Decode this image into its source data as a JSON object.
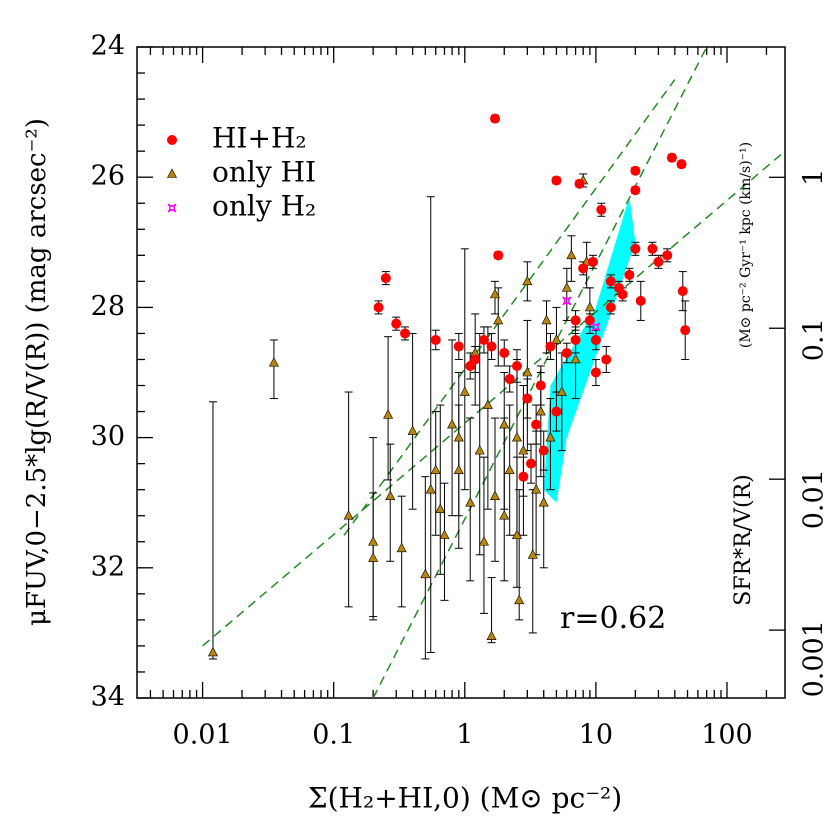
{
  "chart_data": {
    "type": "scatter",
    "xlabel": "Σ(H₂+HI,0) (M⊙ pc⁻²)",
    "ylabel": "μFUV,0−2.5*lg(R/V(R)) (mag arcsec⁻²)",
    "y2label": "SFR*R/V(R)",
    "y2unit": "(M⊙ pc⁻² Gyr⁻¹ kpc (km/s)⁻¹)",
    "annotation": "r=0.62",
    "annotation_color": "#228b22",
    "xlog": true,
    "y2log": true,
    "xlim": [
      0.00316,
      277
    ],
    "ylim": [
      24,
      34
    ],
    "y2lim": [
      0.000355,
      7.3
    ],
    "xticks": [
      0.01,
      0.1,
      1,
      10,
      100
    ],
    "yticks": [
      24,
      26,
      28,
      30,
      32,
      34
    ],
    "y2ticks": [
      1,
      0.1,
      0.01,
      0.001
    ],
    "xminor": [
      0.004,
      0.005,
      0.006,
      0.007,
      0.008,
      0.009,
      0.02,
      0.03,
      0.04,
      0.05,
      0.06,
      0.07,
      0.08,
      0.09,
      0.2,
      0.3,
      0.4,
      0.5,
      0.6,
      0.7,
      0.8,
      0.9,
      2,
      3,
      4,
      5,
      6,
      7,
      8,
      9,
      20,
      30,
      40,
      50,
      60,
      70,
      80,
      90,
      200
    ],
    "yminor": [
      24.4,
      24.8,
      25.2,
      25.6,
      26.4,
      26.8,
      27.2,
      27.6,
      28.4,
      28.8,
      29.2,
      29.6,
      30.4,
      30.8,
      31.2,
      31.6,
      32.4,
      32.8,
      33.2,
      33.6
    ],
    "legend": "upper left",
    "series": [
      {
        "name": "HI+H₂",
        "color": "#ff0000",
        "marker": "circle",
        "x": [
          1.7,
          0.25,
          0.22,
          0.3,
          0.35,
          0.6,
          0.9,
          1.2,
          1.6,
          2,
          2.5,
          3,
          3.5,
          4,
          2.8,
          3.2,
          5,
          7.5,
          11,
          13,
          15,
          20,
          27,
          35,
          46,
          48,
          20,
          20,
          38,
          45,
          1.8,
          8,
          9,
          10,
          12,
          10,
          6,
          5,
          13,
          18,
          16,
          2.2,
          1.1,
          1.4,
          3.8,
          4.5,
          7,
          9.5,
          30,
          22,
          7
        ],
        "values": [
          25.1,
          27.55,
          28,
          28.25,
          28.4,
          28.5,
          28.6,
          28.8,
          28.6,
          28.7,
          28.9,
          29.4,
          29.8,
          30.2,
          30.6,
          30.4,
          26.05,
          26.1,
          26.5,
          27.6,
          27.7,
          27.1,
          27.1,
          27.2,
          27.75,
          28.35,
          25.9,
          26.2,
          25.7,
          25.8,
          27.2,
          27.4,
          28.2,
          28.5,
          28.8,
          29,
          28.7,
          29.6,
          28,
          27.5,
          27.8,
          29.1,
          28.9,
          28.5,
          29.2,
          28.6,
          28.2,
          27.3,
          27.3,
          27.9,
          28.5
        ],
        "yerr": [
          0.05,
          0.1,
          0.1,
          0.1,
          0.1,
          0.15,
          0.2,
          0.2,
          0.2,
          0.2,
          0.25,
          0.3,
          0.3,
          0.3,
          0.3,
          0.3,
          0.05,
          0.05,
          0.1,
          0.1,
          0.1,
          0.1,
          0.1,
          0.1,
          0.3,
          0.45,
          0.05,
          0.05,
          0.05,
          0.05,
          0.05,
          0.1,
          0.1,
          0.15,
          0.2,
          0.2,
          0.15,
          0.3,
          0.1,
          0.1,
          0.1,
          0.2,
          0.2,
          0.2,
          0.3,
          0.2,
          0.15,
          0.1,
          0.1,
          0.3,
          0.2
        ]
      },
      {
        "name": "only HI",
        "color": "#b8860b",
        "marker": "triangle",
        "x": [
          0.012,
          0.035,
          0.13,
          0.2,
          0.2,
          0.26,
          0.27,
          0.33,
          0.4,
          0.5,
          0.55,
          0.65,
          0.7,
          0.8,
          0.9,
          1,
          1.1,
          1.3,
          1.5,
          1.6,
          1.7,
          1.8,
          2,
          2.2,
          2.5,
          2.6,
          2.8,
          3,
          3.3,
          3.5,
          3.8,
          4,
          4.5,
          5,
          5.5,
          6,
          7,
          8,
          8.5,
          9,
          1.7,
          1.2,
          0.9,
          2,
          1.4,
          3,
          4.2,
          6.5,
          2.5,
          0.6
        ],
        "values": [
          33.3,
          28.85,
          31.2,
          31.6,
          31.85,
          29.65,
          30.9,
          31.7,
          29.9,
          32.1,
          30.8,
          31.1,
          31.5,
          29.8,
          30.5,
          29.3,
          31,
          30.2,
          29.5,
          33.05,
          30.9,
          28.2,
          29.8,
          30.5,
          31.5,
          32.5,
          30.2,
          29,
          31.8,
          30.8,
          29.6,
          31,
          30,
          28.5,
          29.3,
          27.7,
          28.8,
          26.05,
          27.3,
          28,
          27.8,
          28.7,
          30,
          31.2,
          31.6,
          27.6,
          28.2,
          27.2,
          30,
          30.5
        ],
        "yerr": [
          [
            3.85,
            0.1
          ],
          [
            0.35,
            0.55
          ],
          [
            1.9,
            1.4
          ],
          [
            1.6,
            1.2
          ],
          [
            1,
            0.9
          ],
          [
            1.2,
            1
          ],
          [
            0.8,
            1
          ],
          [
            0.8,
            0.9
          ],
          [
            1.5,
            1.2
          ],
          [
            1.5,
            1.3
          ],
          [
            4.5,
            2.5
          ],
          [
            1.6,
            1
          ],
          [
            0.8,
            1
          ],
          [
            1.3,
            1.4
          ],
          [
            1,
            1.2
          ],
          [
            2.2,
            1.5
          ],
          [
            1.3,
            1.2
          ],
          [
            1.8,
            1.6
          ],
          [
            1.2,
            1.6
          ],
          [
            0.9,
            0.1
          ],
          [
            1.2,
            1
          ],
          [
            0.5,
            0.7
          ],
          [
            0.8,
            1.3
          ],
          [
            1,
            1
          ],
          [
            1.2,
            0.8
          ],
          [
            1.7,
            0.3
          ],
          [
            1,
            1.3
          ],
          [
            0.8,
            1.2
          ],
          [
            1,
            1.2
          ],
          [
            0.9,
            1
          ],
          [
            0.6,
            1
          ],
          [
            0.8,
            1
          ],
          [
            0.6,
            0.8
          ],
          [
            0.5,
            0.8
          ],
          [
            0.6,
            0.9
          ],
          [
            0.3,
            0.5
          ],
          [
            0.4,
            0.6
          ],
          [
            0.1,
            0.1
          ],
          [
            0.3,
            0.4
          ],
          [
            0.3,
            0.4
          ],
          [
            0.2,
            0.3
          ],
          [
            0.6,
            0.8
          ],
          [
            1,
            1.2
          ],
          [
            1.5,
            1
          ],
          [
            1.3,
            1.1
          ],
          [
            0.3,
            0.3
          ],
          [
            0.3,
            0.5
          ],
          [
            0.3,
            0.4
          ],
          [
            1.2,
            1.5
          ],
          [
            0.9,
            1
          ]
        ]
      },
      {
        "name": "only H₂",
        "color": "#ff00ff",
        "marker": "star",
        "x": [
          10,
          6
        ],
        "values": [
          28.3,
          27.9
        ]
      }
    ],
    "fit_lines": [
      {
        "color": "#228b22",
        "x": [
          0.01,
          277
        ],
        "y": [
          33.2,
          25.6
        ]
      },
      {
        "color": "#228b22",
        "x": [
          0.2,
          70
        ],
        "y": [
          34,
          24
        ]
      },
      {
        "color": "#228b22",
        "x": [
          0.12,
          40
        ],
        "y": [
          31.5,
          24.5
        ]
      }
    ],
    "shaded_region": {
      "color": "#00ffff",
      "x": [
        4,
        4.5,
        10,
        18,
        20,
        12,
        6,
        5
      ],
      "y": [
        30.8,
        29.2,
        28,
        26.3,
        27,
        28.3,
        30,
        31
      ]
    }
  }
}
